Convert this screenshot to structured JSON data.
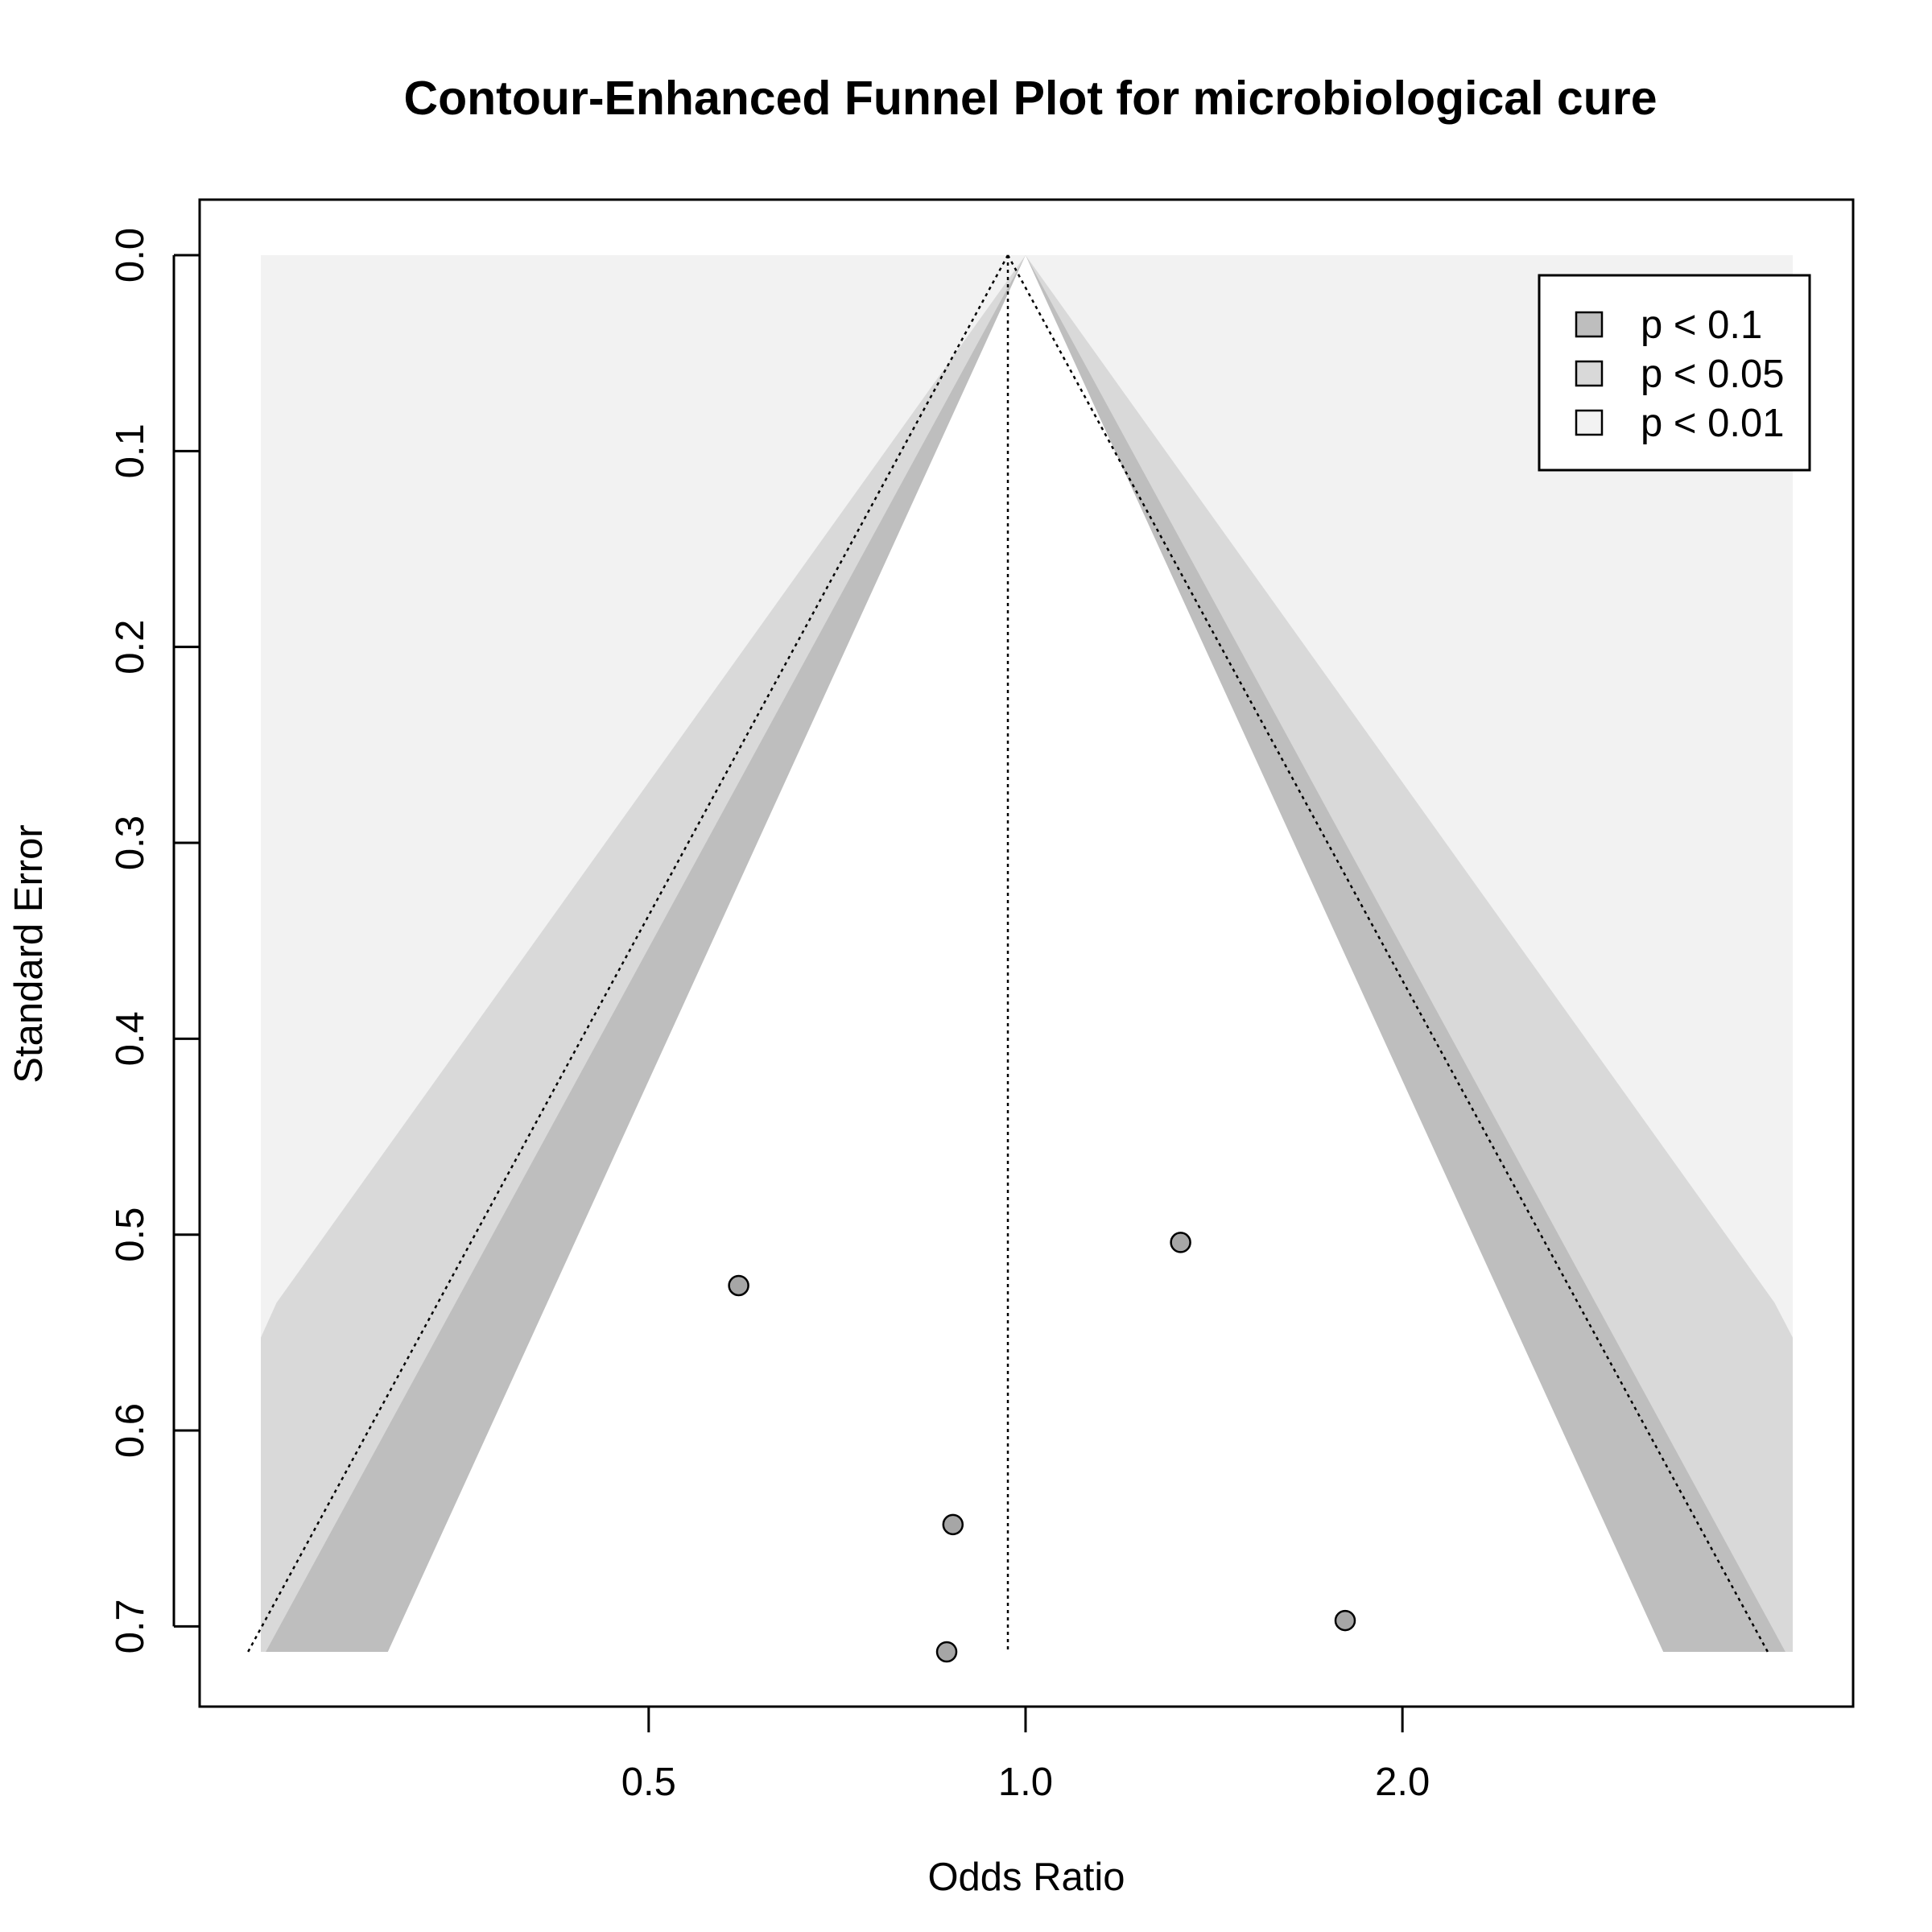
{
  "chart_data": {
    "type": "scatter",
    "title": "Contour-Enhanced Funnel Plot for microbiological cure",
    "xlabel": "Odds Ratio",
    "ylabel": "Standard Error",
    "x_scale": "log",
    "y_reversed": true,
    "x_ticks": [
      0.5,
      1.0,
      2.0
    ],
    "x_tick_labels": [
      "0.5",
      "1.0",
      "2.0"
    ],
    "y_ticks": [
      0.0,
      0.1,
      0.2,
      0.3,
      0.4,
      0.5,
      0.6,
      0.7
    ],
    "y_tick_labels": [
      "0.0",
      "0.1",
      "0.2",
      "0.3",
      "0.4",
      "0.5",
      "0.6",
      "0.7"
    ],
    "xlim": [
      0.245,
      4.1
    ],
    "ylim": [
      0.713,
      0.0
    ],
    "summary_odds_ratio": 0.968,
    "contours": [
      {
        "label": "p < 0.1",
        "z": 1.645,
        "color": "#bebebe"
      },
      {
        "label": "p < 0.05",
        "z": 1.96,
        "color": "#d9d9d9"
      },
      {
        "label": "p < 0.01",
        "z": 2.576,
        "color": "#f2f2f2"
      }
    ],
    "legend": {
      "position": "top-right",
      "entries": [
        "p < 0.1",
        "p < 0.05",
        "p < 0.01"
      ]
    },
    "points": [
      {
        "odds_ratio": 0.59,
        "se": 0.526
      },
      {
        "odds_ratio": 1.33,
        "se": 0.504
      },
      {
        "odds_ratio": 0.875,
        "se": 0.648
      },
      {
        "odds_ratio": 1.8,
        "se": 0.697
      },
      {
        "odds_ratio": 0.865,
        "se": 0.713
      }
    ],
    "point_color": "#a6a6a6"
  }
}
